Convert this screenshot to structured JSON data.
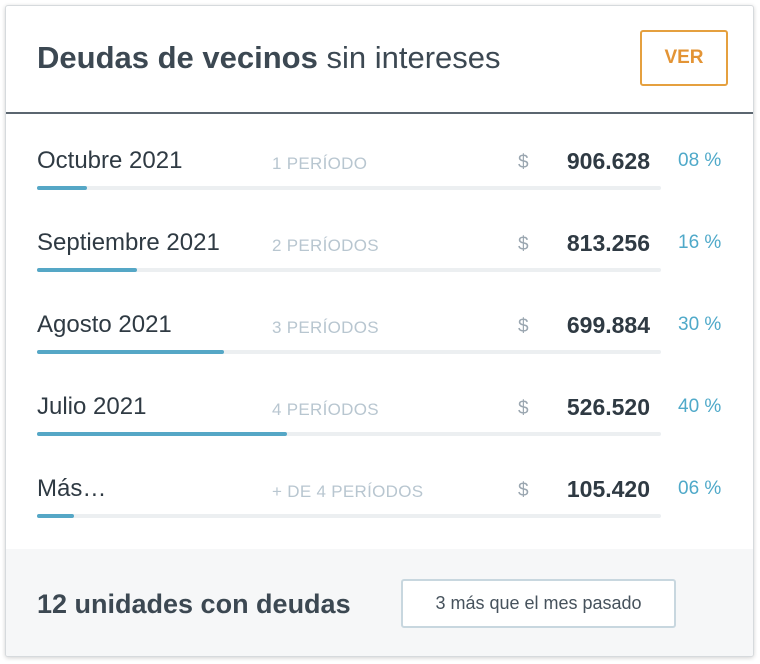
{
  "header": {
    "title_strong": "Deudas de vecinos",
    "title_light": "sin intereses",
    "action_label": "VER"
  },
  "rows": [
    {
      "month": "Octubre 2021",
      "periods": "1 PERÍODO",
      "currency": "$",
      "amount": "906.628",
      "percent_label": "08 %",
      "progress": 0.08
    },
    {
      "month": "Septiembre 2021",
      "periods": "2 PERÍODOS",
      "currency": "$",
      "amount": "813.256",
      "percent_label": "16 %",
      "progress": 0.16
    },
    {
      "month": "Agosto 2021",
      "periods": "3 PERÍODOS",
      "currency": "$",
      "amount": "699.884",
      "percent_label": "30 %",
      "progress": 0.3
    },
    {
      "month": "Julio 2021",
      "periods": "4 PERÍODOS",
      "currency": "$",
      "amount": "526.520",
      "percent_label": "40 %",
      "progress": 0.4
    },
    {
      "month": "Más…",
      "periods": "+ DE 4 PERÍODOS",
      "currency": "$",
      "amount": "105.420",
      "percent_label": "06 %",
      "progress": 0.06
    }
  ],
  "footer": {
    "units_text": "12 unidades con deudas",
    "comparison_badge": "3 más que el mes pasado"
  },
  "colors": {
    "accent_orange": "#e39435",
    "bar_blue": "#55a7c6",
    "percent_blue": "#4fa9c9",
    "text_dark": "#2f3a43",
    "periods_gray": "#b8c6d0"
  }
}
